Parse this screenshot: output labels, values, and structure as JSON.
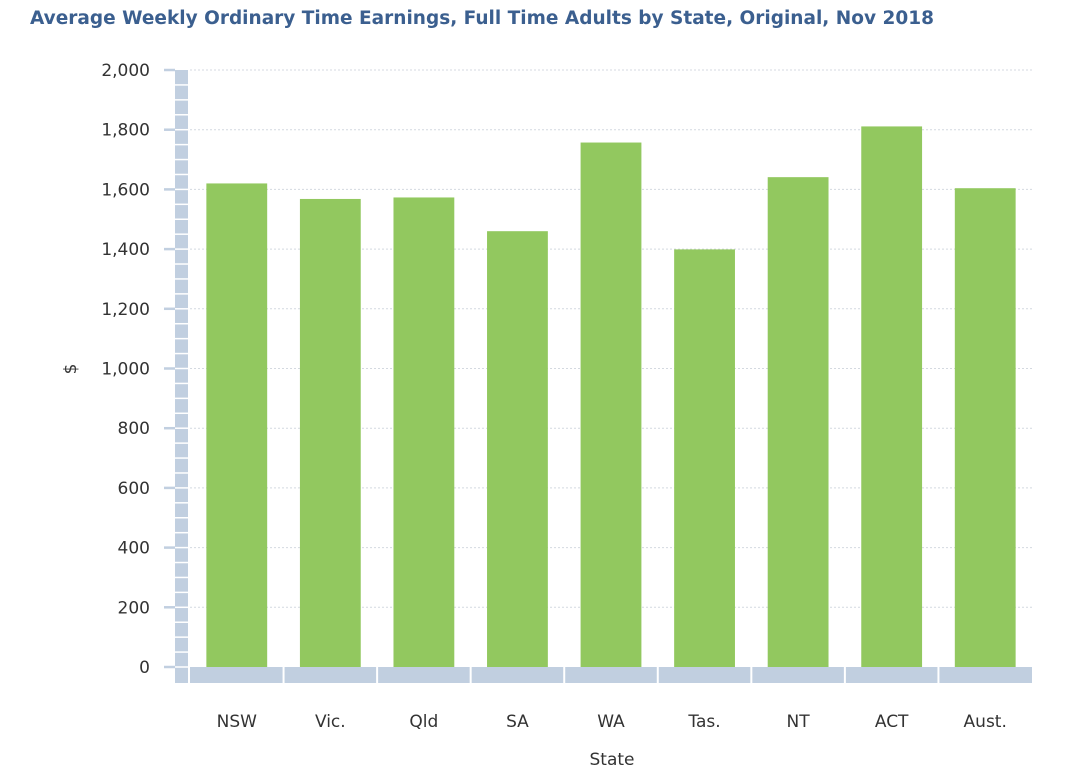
{
  "chart_data": {
    "type": "bar",
    "title": "Average Weekly Ordinary Time Earnings, Full Time Adults by State, Original, Nov 2018",
    "xlabel": "State",
    "ylabel": "$",
    "categories": [
      "NSW",
      "Vic.",
      "Qld",
      "SA",
      "WA",
      "Tas.",
      "NT",
      "ACT",
      "Aust."
    ],
    "values": [
      1620,
      1568,
      1573,
      1460,
      1757,
      1399,
      1641,
      1811,
      1604
    ],
    "ylim": [
      0,
      2000
    ],
    "yticks": [
      0,
      200,
      400,
      600,
      800,
      1000,
      1200,
      1400,
      1600,
      1800,
      2000
    ],
    "ytick_labels": [
      "0",
      "200",
      "400",
      "600",
      "800",
      "1,000",
      "1,200",
      "1,400",
      "1,600",
      "1,800",
      "2,000"
    ],
    "grid": true,
    "colors": {
      "bar": "#92c85f",
      "grid": "#d4d9e0",
      "axis": "#c1cfe0",
      "title": "#3b5f8f",
      "text": "#333333"
    }
  }
}
